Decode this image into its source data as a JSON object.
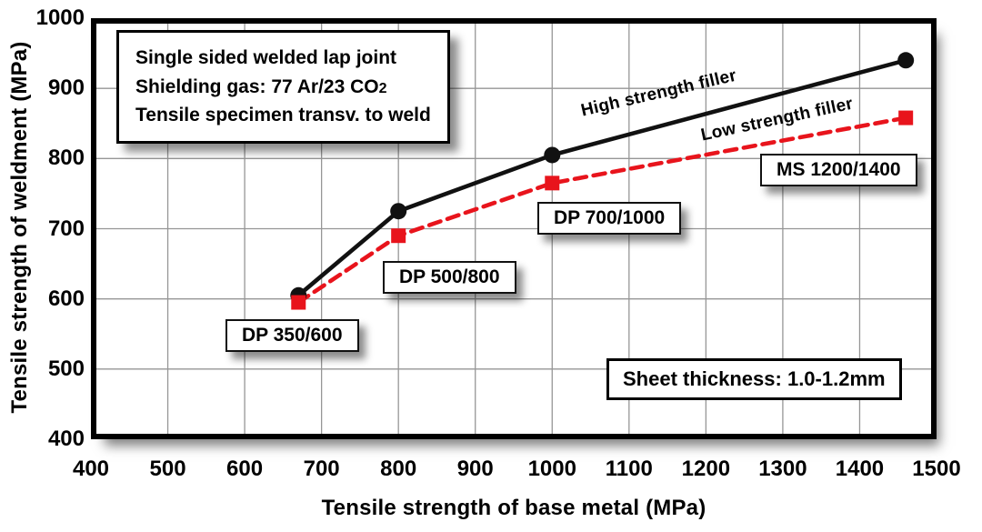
{
  "figure": {
    "x_axis_title": "Tensile strength of base metal (MPa)",
    "y_axis_title": "Tensile strength of weldment (MPa)"
  },
  "annotation_box": {
    "line1": "Single sided welded lap joint",
    "line2_prefix": "Shielding gas: 77 Ar/23 CO",
    "line2_subscript": "2",
    "line3": "Tensile specimen transv. to weld"
  },
  "series_labels": {
    "high": "High strength filler",
    "low": "Low strength filler"
  },
  "point_labels": {
    "dp350": "DP 350/600",
    "dp500": "DP 500/800",
    "dp700": "DP 700/1000",
    "ms": "MS 1200/1400"
  },
  "note_box": {
    "text": "Sheet thickness: 1.0-1.2mm"
  },
  "colors": {
    "high_series": "#111111",
    "low_series": "#e8141c",
    "grid": "#969696",
    "frame": "#000000"
  },
  "chart_data": {
    "type": "line",
    "title": "",
    "xlabel": "Tensile strength of base metal (MPa)",
    "ylabel": "Tensile strength of weldment (MPa)",
    "xlim": [
      400,
      1500
    ],
    "ylim": [
      400,
      1000
    ],
    "x_ticks": [
      400,
      500,
      600,
      700,
      800,
      900,
      1000,
      1100,
      1200,
      1300,
      1400,
      1500
    ],
    "y_ticks": [
      400,
      500,
      600,
      700,
      800,
      900,
      1000
    ],
    "grid": true,
    "x": [
      670,
      800,
      1000,
      1460
    ],
    "point_steel_grades": [
      "DP 350/600",
      "DP 500/800",
      "DP 700/1000",
      "MS 1200/1400"
    ],
    "series": [
      {
        "name": "High strength filler",
        "values": [
          605,
          725,
          805,
          940
        ],
        "color": "#111111",
        "marker": "circle",
        "line_style": "solid"
      },
      {
        "name": "Low strength filler",
        "values": [
          595,
          690,
          765,
          858
        ],
        "color": "#e8141c",
        "marker": "square",
        "line_style": "dashed"
      }
    ]
  }
}
